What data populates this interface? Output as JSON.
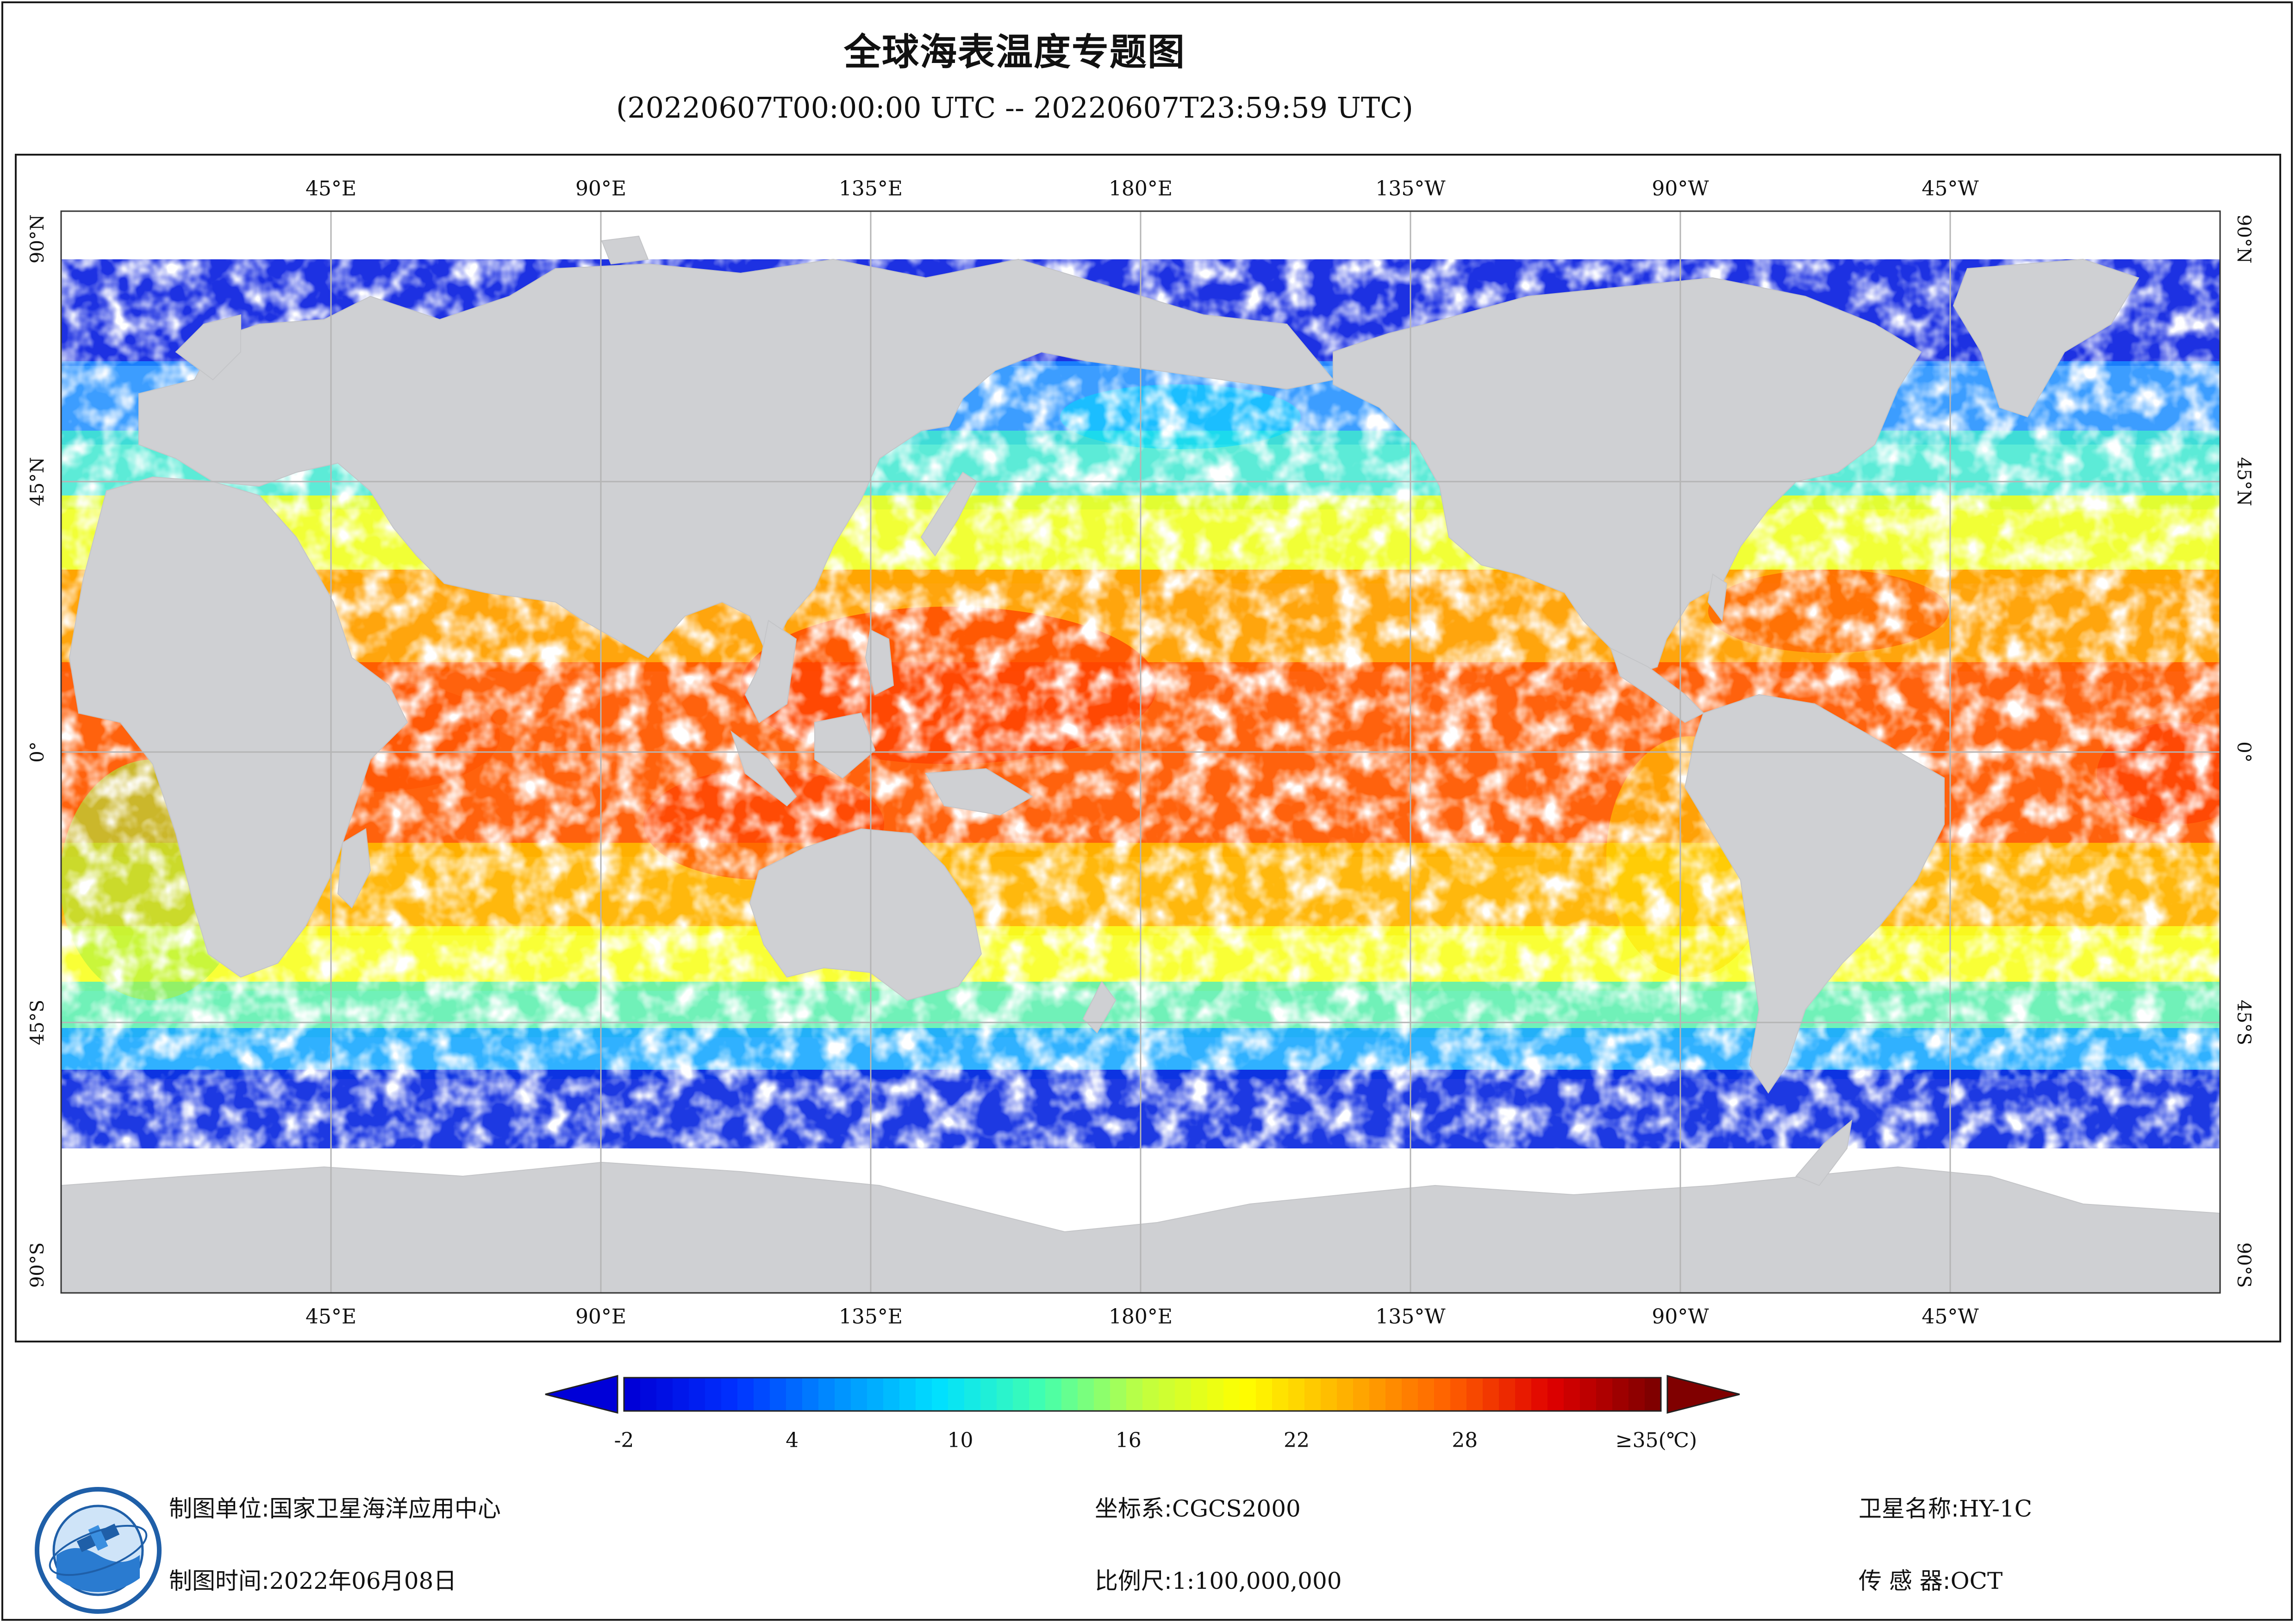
{
  "title": "全球海表温度专题图",
  "subtitle": "(20220607T00:00:00 UTC -- 20220607T23:59:59 UTC)",
  "map": {
    "top_lon_labels": [
      "45°E",
      "90°E",
      "135°E",
      "180°E",
      "135°W",
      "90°W",
      "45°W"
    ],
    "bottom_lon_labels": [
      "45°E",
      "90°E",
      "135°E",
      "180°E",
      "135°W",
      "90°W",
      "45°W"
    ],
    "lat_labels": [
      "90°N",
      "45°N",
      "0°",
      "45°S",
      "90°S"
    ],
    "colors": {
      "land": "#cfd0d3",
      "cloud": "#ffffff",
      "grid": "#b5b5b5"
    }
  },
  "colorbar": {
    "tick_labels": [
      "-2",
      "4",
      "10",
      "16",
      "22",
      "28",
      "≥35(℃)"
    ],
    "min_value": -2,
    "max_value": 35,
    "stops": [
      "#0000d8",
      "#0030ff",
      "#0090ff",
      "#00e0ff",
      "#40ffb0",
      "#c0ff40",
      "#ffff00",
      "#ffb000",
      "#ff6000",
      "#e00000",
      "#800000"
    ]
  },
  "footer": {
    "producer_label": "制图单位:",
    "producer_value": "国家卫星海洋应用中心",
    "time_label": "制图时间:",
    "time_value": "2022年06月08日",
    "crs_label": "坐标系:",
    "crs_value": "CGCS2000",
    "scale_label": "比例尺:",
    "scale_value": "1:100,000,000",
    "satellite_label": "卫星名称:",
    "satellite_value": "HY-1C",
    "sensor_label": "传 感 器:",
    "sensor_value": "OCT"
  },
  "logo": {
    "icon": "nsoas-logo-emblem"
  }
}
